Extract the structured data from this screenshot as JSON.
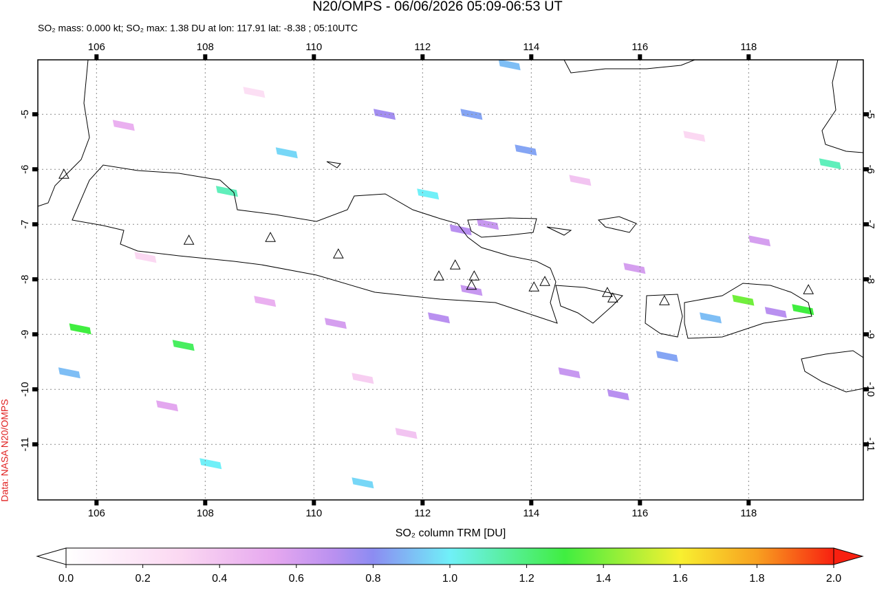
{
  "chart_data": {
    "type": "map",
    "title": "N20/OMPS - 06/06/2026 05:09-06:53 UT",
    "subtitle": "SO₂ mass: 0.000 kt; SO₂ max: 1.38 DU at lon: 117.91 lat: -8.38 ; 05:10UTC",
    "source": "Data: NASA N20/OMPS",
    "xlim": [
      104.92,
      120.11
    ],
    "ylim": [
      -12.01,
      -4.01
    ],
    "xticks": [
      106,
      108,
      110,
      112,
      114,
      116,
      118
    ],
    "yticks": [
      -5,
      -6,
      -7,
      -8,
      -9,
      -10,
      -11
    ],
    "grid": true,
    "pixels": [
      {
        "lon": 112.1,
        "lat": -6.45,
        "value": 1.0
      },
      {
        "lon": 112.9,
        "lat": -5.0,
        "value": 0.85
      },
      {
        "lon": 113.6,
        "lat": -4.1,
        "value": 0.9
      },
      {
        "lon": 111.3,
        "lat": -5.0,
        "value": 0.75
      },
      {
        "lon": 113.9,
        "lat": -5.65,
        "value": 0.85
      },
      {
        "lon": 109.5,
        "lat": -5.7,
        "value": 0.95
      },
      {
        "lon": 108.4,
        "lat": -6.4,
        "value": 1.1
      },
      {
        "lon": 105.7,
        "lat": -8.9,
        "value": 1.3
      },
      {
        "lon": 107.6,
        "lat": -9.2,
        "value": 1.25
      },
      {
        "lon": 117.9,
        "lat": -8.38,
        "value": 1.38
      },
      {
        "lon": 119.0,
        "lat": -8.55,
        "value": 1.3
      },
      {
        "lon": 108.1,
        "lat": -11.35,
        "value": 1.0
      },
      {
        "lon": 105.5,
        "lat": -9.7,
        "value": 0.9
      },
      {
        "lon": 110.9,
        "lat": -11.7,
        "value": 0.95
      },
      {
        "lon": 116.5,
        "lat": -9.4,
        "value": 0.85
      },
      {
        "lon": 119.5,
        "lat": -5.9,
        "value": 1.1
      },
      {
        "lon": 117.3,
        "lat": -8.7,
        "value": 0.9
      },
      {
        "lon": 112.7,
        "lat": -7.1,
        "value": 0.7
      },
      {
        "lon": 113.2,
        "lat": -7.0,
        "value": 0.65
      },
      {
        "lon": 112.3,
        "lat": -8.7,
        "value": 0.7
      },
      {
        "lon": 112.9,
        "lat": -8.2,
        "value": 0.65
      },
      {
        "lon": 118.5,
        "lat": -8.6,
        "value": 0.7
      },
      {
        "lon": 110.4,
        "lat": -8.8,
        "value": 0.6
      },
      {
        "lon": 109.1,
        "lat": -8.4,
        "value": 0.5
      },
      {
        "lon": 114.7,
        "lat": -9.7,
        "value": 0.65
      },
      {
        "lon": 115.6,
        "lat": -10.1,
        "value": 0.7
      },
      {
        "lon": 107.3,
        "lat": -10.3,
        "value": 0.55
      },
      {
        "lon": 106.5,
        "lat": -5.2,
        "value": 0.5
      },
      {
        "lon": 118.2,
        "lat": -7.3,
        "value": 0.6
      },
      {
        "lon": 115.9,
        "lat": -7.8,
        "value": 0.6
      },
      {
        "lon": 106.9,
        "lat": -7.6,
        "value": 0.3
      },
      {
        "lon": 110.9,
        "lat": -9.8,
        "value": 0.35
      },
      {
        "lon": 114.9,
        "lat": -6.2,
        "value": 0.4
      },
      {
        "lon": 117.0,
        "lat": -5.4,
        "value": 0.3
      },
      {
        "lon": 108.9,
        "lat": -4.6,
        "value": 0.25
      },
      {
        "lon": 111.7,
        "lat": -10.8,
        "value": 0.4
      }
    ],
    "volcanoes": [
      {
        "lon": 105.4,
        "lat": -6.1
      },
      {
        "lon": 107.7,
        "lat": -7.3
      },
      {
        "lon": 109.2,
        "lat": -7.25
      },
      {
        "lon": 110.45,
        "lat": -7.55
      },
      {
        "lon": 112.3,
        "lat": -7.95
      },
      {
        "lon": 112.6,
        "lat": -7.75
      },
      {
        "lon": 112.95,
        "lat": -7.95
      },
      {
        "lon": 112.9,
        "lat": -8.12
      },
      {
        "lon": 114.05,
        "lat": -8.15
      },
      {
        "lon": 114.25,
        "lat": -8.05
      },
      {
        "lon": 115.4,
        "lat": -8.25
      },
      {
        "lon": 115.5,
        "lat": -8.35
      },
      {
        "lon": 116.45,
        "lat": -8.4
      },
      {
        "lon": 119.1,
        "lat": -8.2
      }
    ],
    "colorbar": {
      "label": "SO₂ column TRM [DU]",
      "clim": [
        0,
        2
      ],
      "ticks": [
        {
          "value": 0,
          "label": "0.0"
        },
        {
          "value": 0.2,
          "label": "0.2"
        },
        {
          "value": 0.4,
          "label": "0.4"
        },
        {
          "value": 0.6,
          "label": "0.6"
        },
        {
          "value": 0.8,
          "label": "0.8"
        },
        {
          "value": 1,
          "label": "1.0"
        },
        {
          "value": 1.2,
          "label": "1.2"
        },
        {
          "value": 1.4,
          "label": "1.4"
        },
        {
          "value": 1.6,
          "label": "1.6"
        },
        {
          "value": 1.8,
          "label": "1.8"
        },
        {
          "value": 2,
          "label": "2.0"
        }
      ]
    }
  }
}
